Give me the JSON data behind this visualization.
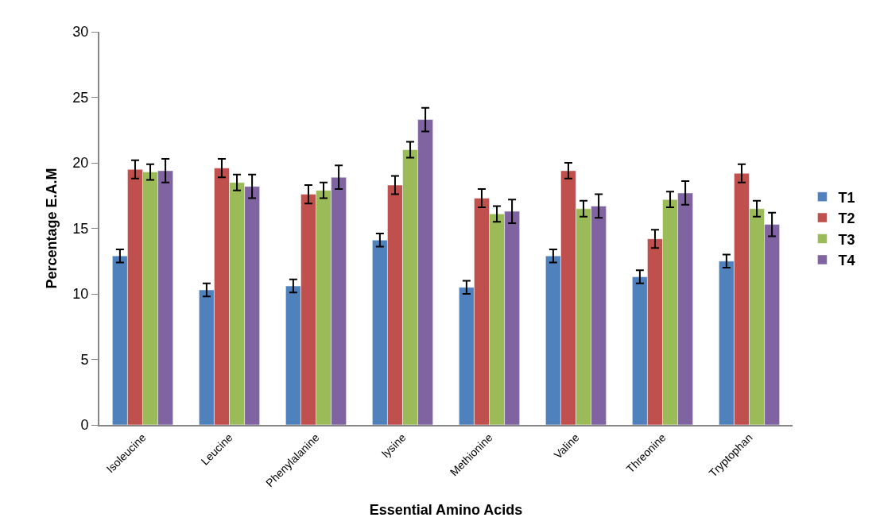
{
  "chart_data": {
    "type": "bar",
    "xlabel": "Essential Amino Acids",
    "ylabel": "Percentage E.A.M",
    "categories": [
      "Isoleucine",
      "Leucine",
      "Phenylalanine",
      "lysine",
      "Methionine",
      "Valine",
      "Threonine",
      "Tryptophan"
    ],
    "series": [
      {
        "name": "T1",
        "color": "#4f81bd",
        "values": [
          12.9,
          10.3,
          10.6,
          14.1,
          10.5,
          12.9,
          11.3,
          12.5
        ],
        "errors": [
          0.5,
          0.5,
          0.5,
          0.5,
          0.5,
          0.5,
          0.5,
          0.5
        ]
      },
      {
        "name": "T2",
        "color": "#c0504d",
        "values": [
          19.5,
          19.6,
          17.6,
          18.3,
          17.3,
          19.4,
          14.2,
          19.2
        ],
        "errors": [
          0.7,
          0.7,
          0.7,
          0.7,
          0.7,
          0.6,
          0.7,
          0.7
        ]
      },
      {
        "name": "T3",
        "color": "#9bbb59",
        "values": [
          19.3,
          18.5,
          17.9,
          21.0,
          16.1,
          16.5,
          17.2,
          16.5
        ],
        "errors": [
          0.6,
          0.6,
          0.6,
          0.6,
          0.6,
          0.6,
          0.6,
          0.6
        ]
      },
      {
        "name": "T4",
        "color": "#8064a2",
        "values": [
          19.4,
          18.2,
          18.9,
          23.3,
          16.3,
          16.7,
          17.7,
          15.3
        ],
        "errors": [
          0.9,
          0.9,
          0.9,
          0.9,
          0.9,
          0.9,
          0.9,
          0.9
        ]
      }
    ],
    "ylim": [
      0,
      30
    ],
    "yticks": [
      0,
      5,
      10,
      15,
      20,
      25,
      30
    ],
    "legend": "right"
  }
}
